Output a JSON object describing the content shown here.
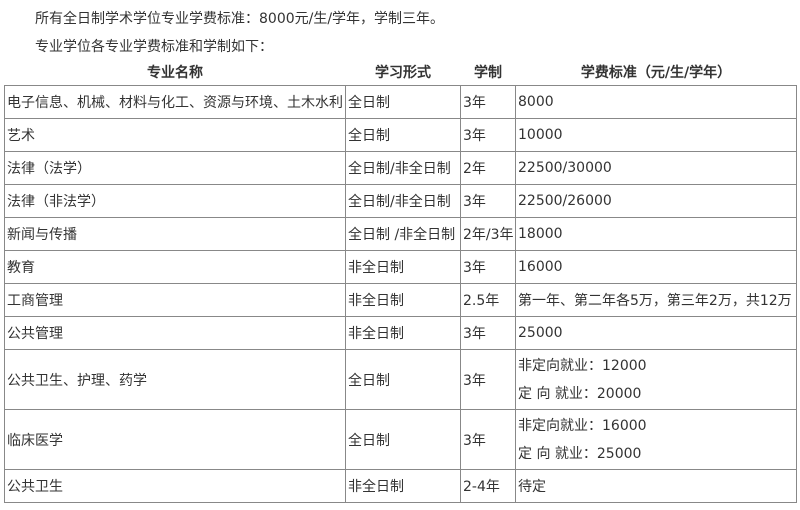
{
  "intro": [
    "所有全日制学术学位专业学费标准：8000元/生/学年，学制三年。",
    "专业学位各专业学费标准和学制如下："
  ],
  "table": {
    "headers": [
      "专业名称",
      "学习形式",
      "学制",
      "学费标准（元/生/学年）"
    ],
    "rows": [
      [
        "电子信息、机械、材料与化工、资源与环境、土木水利",
        "全日制",
        "3年",
        "8000"
      ],
      [
        "艺术",
        "全日制",
        "3年",
        "10000"
      ],
      [
        "法律（法学）",
        "全日制/非全日制",
        "2年",
        "22500/30000"
      ],
      [
        "法律（非法学）",
        "全日制/非全日制",
        "3年",
        "22500/26000"
      ],
      [
        "新闻与传播",
        "全日制 /非全日制",
        "2年/3年",
        "18000"
      ],
      [
        "教育",
        "非全日制",
        "3年",
        "16000"
      ],
      [
        "工商管理",
        "非全日制",
        "2.5年",
        "第一年、第二年各5万，第三年2万，共12万"
      ],
      [
        "公共管理",
        "非全日制",
        "3年",
        "25000"
      ],
      [
        "公共卫生、护理、药学",
        "全日制",
        "3年",
        [
          "非定向就业：12000",
          "定 向 就业：20000"
        ]
      ],
      [
        "临床医学",
        "全日制",
        "3年",
        [
          "非定向就业：16000",
          "定 向 就业：25000"
        ]
      ],
      [
        "公共卫生",
        "非全日制",
        "2-4年",
        "待定"
      ]
    ]
  }
}
